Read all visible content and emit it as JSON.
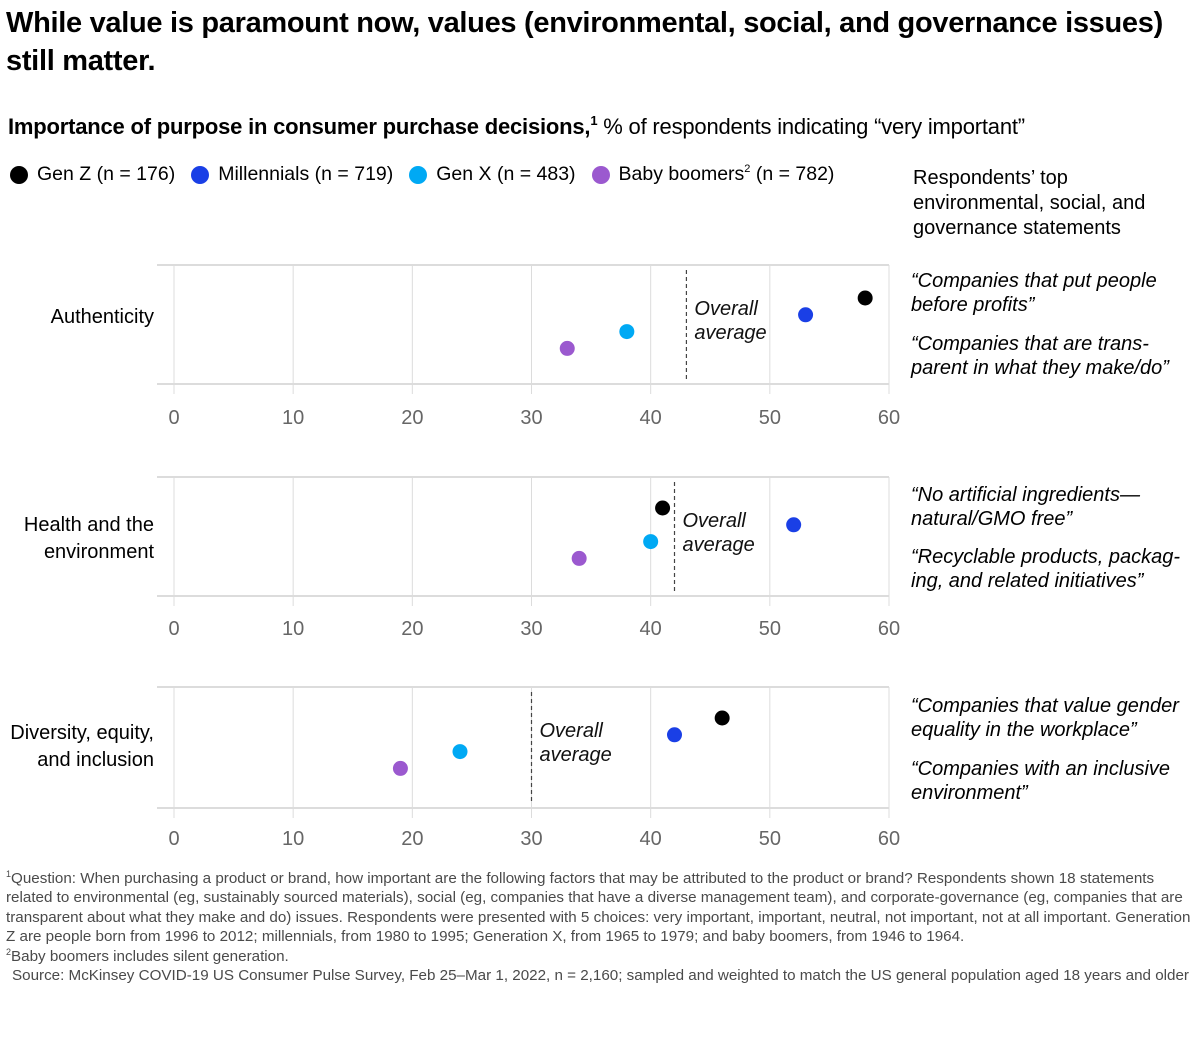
{
  "title": "While value is paramount now, values (environmental, social, and governance issues) still matter.",
  "subtitle": {
    "bold": "Importance of purpose in consumer purchase decisions,",
    "footnote_ref": "1",
    "rest": " % of respondents indicating “very important”"
  },
  "legend": [
    {
      "label": "Gen Z (n = 176)",
      "color": "#000000"
    },
    {
      "label": "Millennials (n = 719)",
      "color": "#1a3fe6"
    },
    {
      "label": "Gen X (n = 483)",
      "color": "#00a9f4"
    },
    {
      "label_pre": "Baby boomers",
      "sup": "2",
      "label_post": " (n = 782)",
      "color": "#9b59cf"
    }
  ],
  "right_header": "Respondents’ top environmental, social, and governance statements",
  "panels": [
    {
      "category_lines": [
        "Authenticity"
      ],
      "statements": [
        "“Companies that put people before profits”",
        "“Companies that are trans-parent in what they make/do”"
      ]
    },
    {
      "category_lines": [
        "Health and the",
        "environment"
      ],
      "statements": [
        "“No artificial ingredients—natural/GMO free”",
        "“Recyclable products, packag-ing, and related initiatives”"
      ]
    },
    {
      "category_lines": [
        "Diversity, equity,",
        "and inclusion"
      ],
      "statements": [
        "“Companies that value gender equality in the workplace”",
        "“Companies with an inclusive environment”"
      ]
    }
  ],
  "chart_data": {
    "type": "scatter",
    "title": "Importance of purpose in consumer purchase decisions",
    "xlabel": "% of respondents indicating “very important”",
    "ylabel": "",
    "xlim": [
      0,
      60
    ],
    "xticks": [
      "0",
      "10",
      "20",
      "30",
      "40",
      "50",
      "60"
    ],
    "grid": true,
    "legend_position": "top",
    "average_label": [
      "Overall",
      "average"
    ],
    "categories": [
      "Authenticity",
      "Health and the environment",
      "Diversity, equity, and inclusion"
    ],
    "overall_average": [
      43,
      42,
      30
    ],
    "series": [
      {
        "name": "Gen Z (n = 176)",
        "color": "#000000",
        "values": [
          58,
          41,
          46
        ]
      },
      {
        "name": "Millennials (n = 719)",
        "color": "#1a3fe6",
        "values": [
          53,
          52,
          42
        ]
      },
      {
        "name": "Gen X (n = 483)",
        "color": "#00a9f4",
        "values": [
          38,
          40,
          24
        ]
      },
      {
        "name": "Baby boomers (n = 782)",
        "color": "#9b59cf",
        "values": [
          33,
          34,
          19
        ]
      }
    ]
  },
  "footnotes": {
    "note1_ref": "1",
    "note1": "Question: When purchasing a product or brand, how important are the following factors that may be attributed to the product or brand? Respondents shown 18 statements related to environmental (eg, sustainably sourced materials), social (eg, companies that have a diverse management team), and corporate-governance (eg, companies that are transparent about what they make and do) issues. Respondents were presented with 5 choices: very important, important, neutral, not important, not at all important. Generation Z are people born from 1996 to 2012; millennials, from 1980 to 1995; Generation X, from 1965 to 1979; and baby boomers, from 1946 to 1964.",
    "note2_ref": "2",
    "note2": "Baby boomers includes silent generation.",
    "source": "Source: McKinsey COVID-19 US Consumer Pulse Survey, Feb 25–Mar 1, 2022, n = 2,160; sampled and weighted to match the US general population aged 18 years and older"
  }
}
